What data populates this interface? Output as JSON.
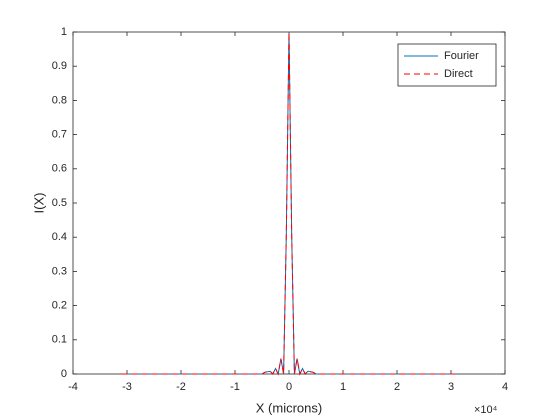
{
  "chart_data": {
    "type": "line",
    "xlabel": "X (microns)",
    "ylabel": "I(X)",
    "x_multiplier": "×10⁴",
    "x": [
      -31000,
      -20000,
      -10000,
      -5000,
      -4500,
      -3500,
      -3000,
      -2500,
      -2000,
      -1500,
      -1000,
      -500,
      0,
      500,
      1000,
      1500,
      2000,
      2500,
      3000,
      3500,
      4500,
      5000,
      10000,
      20000,
      31000
    ],
    "series": [
      {
        "name": "Fourier",
        "color": "#0072bd",
        "dash": false,
        "values": [
          0,
          0,
          0,
          0,
          0.005,
          0.008,
          0,
          0.016,
          0,
          0.045,
          0,
          0.405,
          1,
          0.405,
          0,
          0.045,
          0,
          0.016,
          0,
          0.008,
          0.005,
          0,
          0,
          0,
          0
        ]
      },
      {
        "name": "Direct",
        "color": "#ff0000",
        "dash": true,
        "values": [
          0,
          0,
          0,
          0,
          0.005,
          0.008,
          0,
          0.016,
          0,
          0.045,
          0,
          0.405,
          1,
          0.405,
          0,
          0.045,
          0,
          0.016,
          0,
          0.008,
          0.005,
          0,
          0,
          0,
          0
        ]
      }
    ],
    "xlim": [
      -40000,
      40000
    ],
    "xticks": [
      {
        "value": -40000,
        "label": "-4"
      },
      {
        "value": -30000,
        "label": "-3"
      },
      {
        "value": -20000,
        "label": "-2"
      },
      {
        "value": -10000,
        "label": "-1"
      },
      0,
      {
        "value": 10000,
        "label": "1"
      },
      {
        "value": 20000,
        "label": "2"
      },
      {
        "value": 30000,
        "label": "3"
      },
      {
        "value": 40000,
        "label": "4"
      }
    ],
    "ylim": [
      0,
      1
    ],
    "yticks": [
      0,
      0.1,
      0.2,
      0.3,
      0.4,
      0.5,
      0.6,
      0.7,
      0.8,
      0.9,
      1
    ],
    "legend": "upper right"
  }
}
